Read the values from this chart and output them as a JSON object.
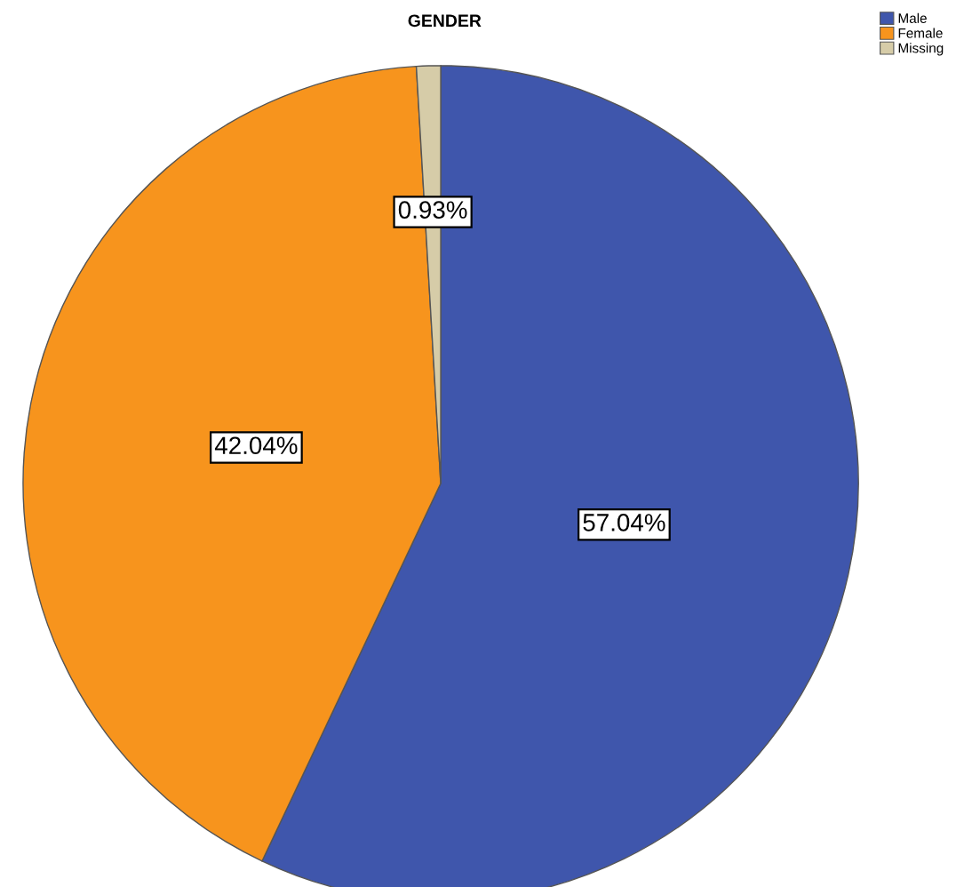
{
  "chart_data": {
    "type": "pie",
    "title": "GENDER",
    "categories": [
      "Male",
      "Female",
      "Missing"
    ],
    "values": [
      57.04,
      42.04,
      0.93
    ],
    "colors": [
      "#3f56ac",
      "#f7941d",
      "#d6cca8"
    ],
    "value_labels": [
      "57.04%",
      "42.04%",
      "0.93%"
    ],
    "legend": "top right"
  }
}
